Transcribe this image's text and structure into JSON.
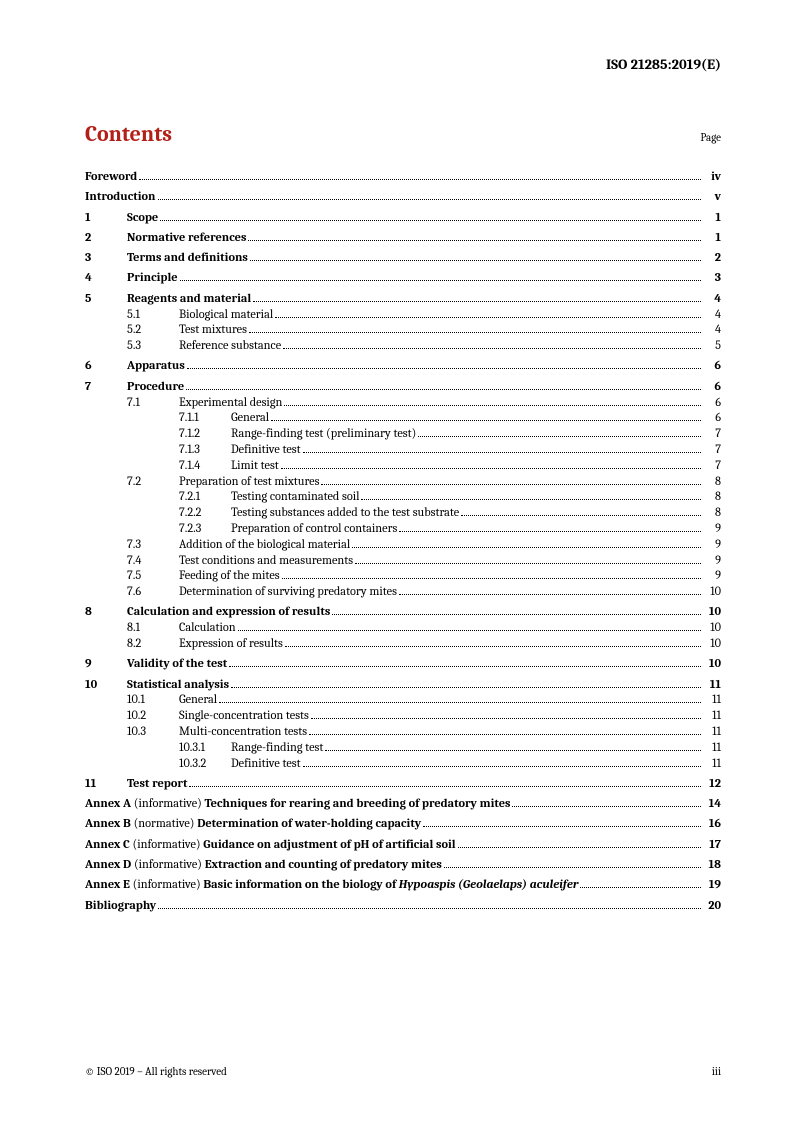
{
  "header": {
    "doc_id": "ISO 21285:2019(E)"
  },
  "title": "Contents",
  "page_label": "Page",
  "toc": [
    {
      "type": "top",
      "num": "",
      "text": "Foreword",
      "page": "iv"
    },
    {
      "type": "top",
      "num": "",
      "text": "Introduction",
      "page": "v"
    },
    {
      "type": "top",
      "num": "1",
      "text": "Scope",
      "page": "1"
    },
    {
      "type": "top",
      "num": "2",
      "text": "Normative references",
      "page": "1"
    },
    {
      "type": "top",
      "num": "3",
      "text": "Terms and definitions",
      "page": "2"
    },
    {
      "type": "top",
      "num": "4",
      "text": "Principle",
      "page": "3"
    },
    {
      "type": "top",
      "num": "5",
      "text": "Reagents and material",
      "page": "4"
    },
    {
      "type": "sub",
      "num": "5.1",
      "text": "Biological material",
      "page": "4"
    },
    {
      "type": "sub",
      "num": "5.2",
      "text": "Test mixtures",
      "page": "4"
    },
    {
      "type": "sub",
      "num": "5.3",
      "text": "Reference substance",
      "page": "5"
    },
    {
      "type": "top",
      "num": "6",
      "text": "Apparatus",
      "page": "6"
    },
    {
      "type": "top",
      "num": "7",
      "text": "Procedure",
      "page": "6"
    },
    {
      "type": "sub",
      "num": "7.1",
      "text": "Experimental design",
      "page": "6"
    },
    {
      "type": "subsub",
      "num": "7.1.1",
      "text": "General",
      "page": "6"
    },
    {
      "type": "subsub",
      "num": "7.1.2",
      "text": "Range-finding test (preliminary test)",
      "page": "7"
    },
    {
      "type": "subsub",
      "num": "7.1.3",
      "text": "Definitive test",
      "page": "7"
    },
    {
      "type": "subsub",
      "num": "7.1.4",
      "text": "Limit test",
      "page": "7"
    },
    {
      "type": "sub",
      "num": "7.2",
      "text": "Preparation of test mixtures",
      "page": "8"
    },
    {
      "type": "subsub",
      "num": "7.2.1",
      "text": "Testing contaminated soil",
      "page": "8"
    },
    {
      "type": "subsub",
      "num": "7.2.2",
      "text": "Testing substances added to the test substrate",
      "page": "8"
    },
    {
      "type": "subsub",
      "num": "7.2.3",
      "text": "Preparation of control containers",
      "page": "9"
    },
    {
      "type": "sub",
      "num": "7.3",
      "text": "Addition of the biological material",
      "page": "9"
    },
    {
      "type": "sub",
      "num": "7.4",
      "text": "Test conditions and measurements",
      "page": "9"
    },
    {
      "type": "sub",
      "num": "7.5",
      "text": "Feeding of the mites",
      "page": "9"
    },
    {
      "type": "sub",
      "num": "7.6",
      "text": "Determination of surviving predatory mites",
      "page": "10"
    },
    {
      "type": "top",
      "num": "8",
      "text": "Calculation and expression of results",
      "page": "10"
    },
    {
      "type": "sub",
      "num": "8.1",
      "text": "Calculation",
      "page": "10"
    },
    {
      "type": "sub",
      "num": "8.2",
      "text": "Expression of results",
      "page": "10"
    },
    {
      "type": "top",
      "num": "9",
      "text": "Validity of the test",
      "page": "10"
    },
    {
      "type": "top",
      "num": "10",
      "text": "Statistical analysis",
      "page": "11"
    },
    {
      "type": "sub",
      "num": "10.1",
      "text": "General",
      "page": "11"
    },
    {
      "type": "sub",
      "num": "10.2",
      "text": "Single-concentration tests",
      "page": "11"
    },
    {
      "type": "sub",
      "num": "10.3",
      "text": "Multi-concentration tests",
      "page": "11"
    },
    {
      "type": "subsub",
      "num": "10.3.1",
      "text": "Range-finding test",
      "page": "11"
    },
    {
      "type": "subsub",
      "num": "10.3.2",
      "text": "Definitive test",
      "page": "11"
    },
    {
      "type": "top",
      "num": "11",
      "text": "Test report",
      "page": "12"
    },
    {
      "type": "annex",
      "label": "Annex A",
      "atype": "(informative)",
      "title": "Techniques for rearing and breeding of predatory mites",
      "page": "14"
    },
    {
      "type": "annex",
      "label": "Annex B",
      "atype": "(normative)",
      "title": "Determination of water-holding capacity",
      "page": "16"
    },
    {
      "type": "annex",
      "label": "Annex C",
      "atype": "(informative)",
      "title": "Guidance on adjustment of pH of artificial soil",
      "page": "17"
    },
    {
      "type": "annex",
      "label": "Annex D",
      "atype": "(informative)",
      "title": "Extraction and counting of predatory mites",
      "page": "18"
    },
    {
      "type": "annex_e",
      "label": "Annex E",
      "atype": "(informative)",
      "title_pre": "Basic information on the biology of ",
      "title_it": "Hypoaspis (Geolaelaps) aculeifer",
      "page": "19"
    },
    {
      "type": "top",
      "num": "",
      "text": "Bibliography",
      "page": "20"
    }
  ],
  "footer": {
    "left": "© ISO 2019 – All rights reserved",
    "right": "iii"
  }
}
